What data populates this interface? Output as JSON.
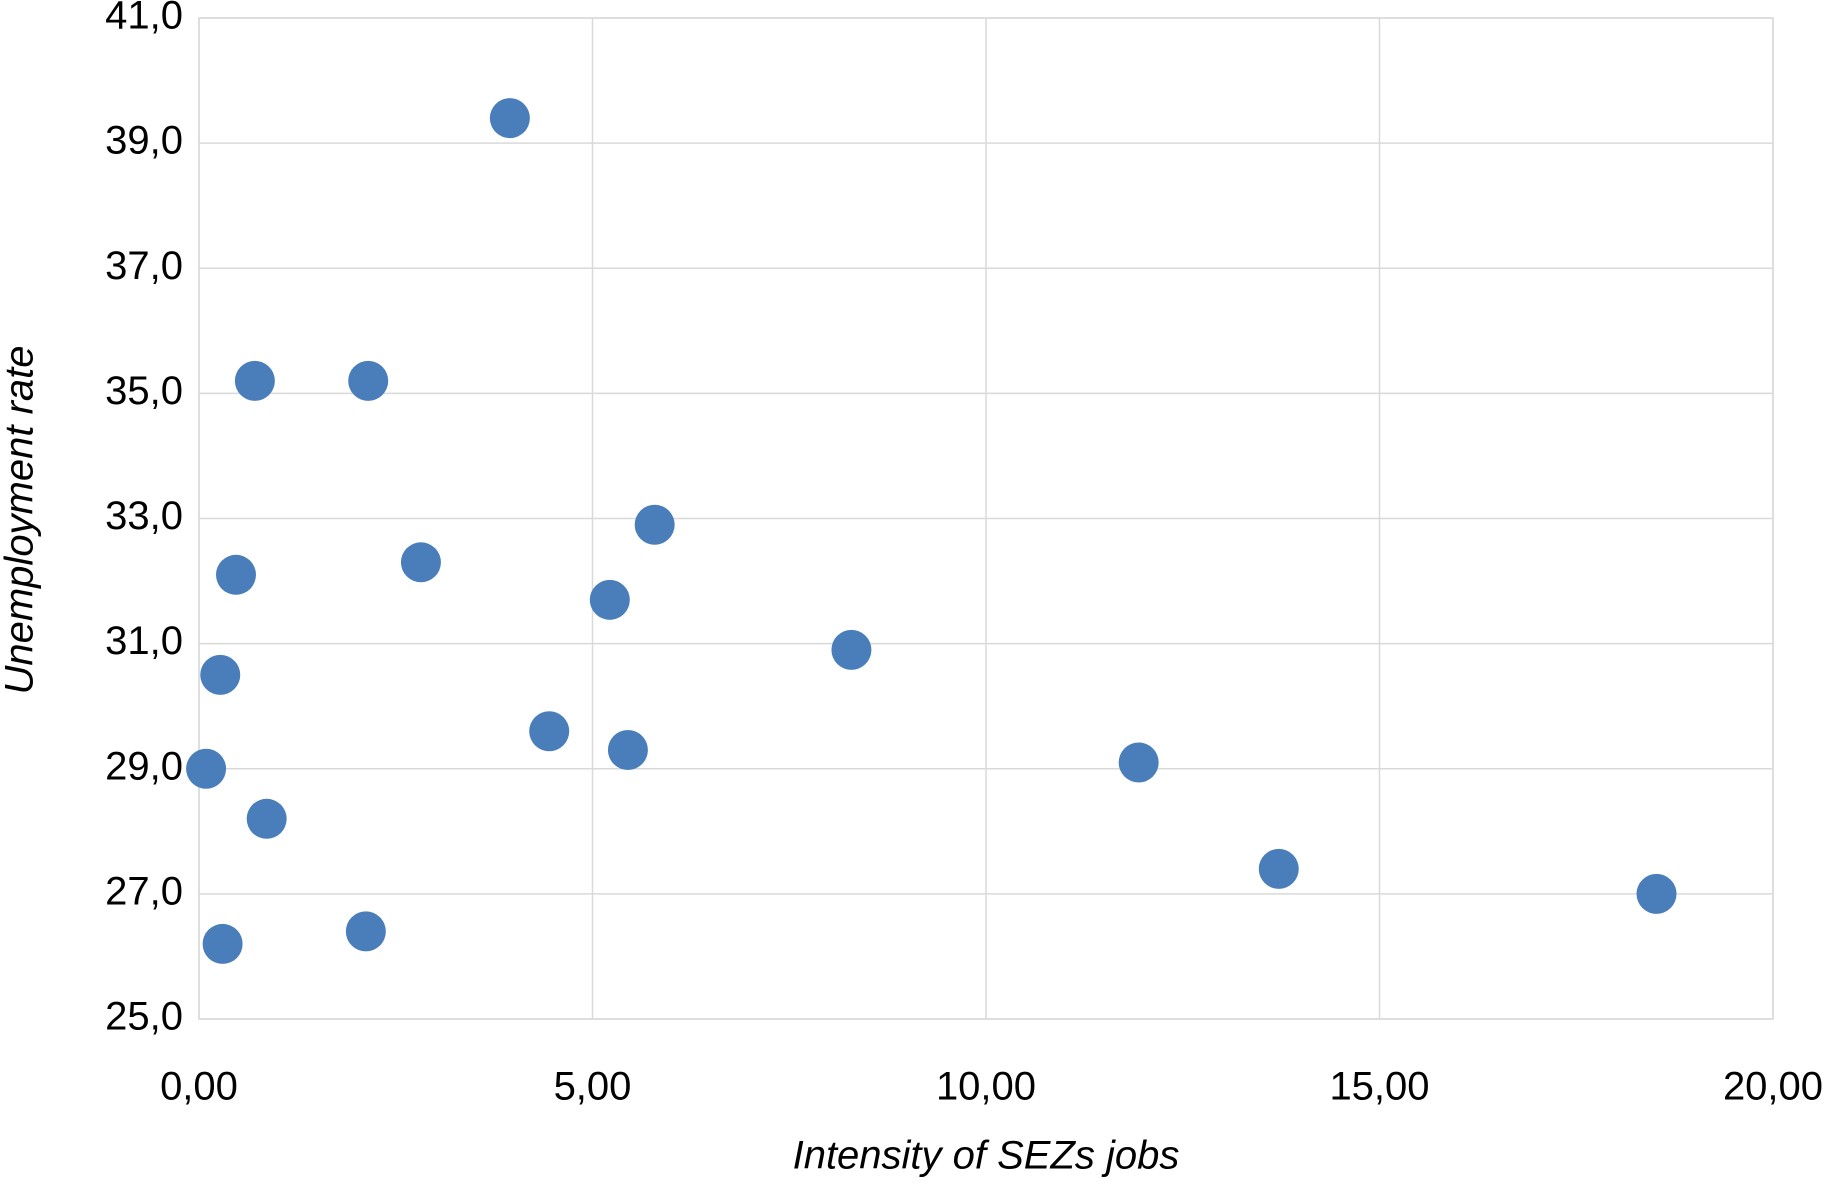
{
  "chart_data": {
    "type": "scatter",
    "x_label": "Intensity of SEZs jobs",
    "y_label": "Unemployment rate",
    "color": "#4a7ebb",
    "grid": true,
    "x": [
      3.95,
      0.71,
      2.15,
      5.79,
      0.47,
      2.82,
      5.22,
      8.29,
      0.27,
      4.45,
      5.45,
      11.94,
      0.09,
      0.86,
      13.72,
      18.52,
      2.12,
      0.3
    ],
    "values": [
      39.4,
      35.2,
      35.2,
      32.9,
      32.1,
      32.3,
      31.7,
      30.9,
      30.5,
      29.6,
      29.3,
      29.1,
      29.0,
      28.2,
      27.4,
      27.0,
      26.4,
      26.2
    ],
    "xlim": [
      0,
      20
    ],
    "xticks": [
      {
        "value": 0,
        "label": "0,00"
      },
      {
        "value": 5,
        "label": "5,00"
      },
      {
        "value": 10,
        "label": "10,00"
      },
      {
        "value": 15,
        "label": "15,00"
      },
      {
        "value": 20,
        "label": "20,00"
      }
    ],
    "ylim": [
      25,
      41
    ],
    "yticks": [
      {
        "value": 25,
        "label": "25,0"
      },
      {
        "value": 27,
        "label": "27,0"
      },
      {
        "value": 29,
        "label": "29,0"
      },
      {
        "value": 31,
        "label": "31,0"
      },
      {
        "value": 33,
        "label": "33,0"
      },
      {
        "value": 35,
        "label": "35,0"
      },
      {
        "value": 37,
        "label": "37,0"
      },
      {
        "value": 39,
        "label": "39,0"
      },
      {
        "value": 41,
        "label": "41,0"
      }
    ]
  }
}
